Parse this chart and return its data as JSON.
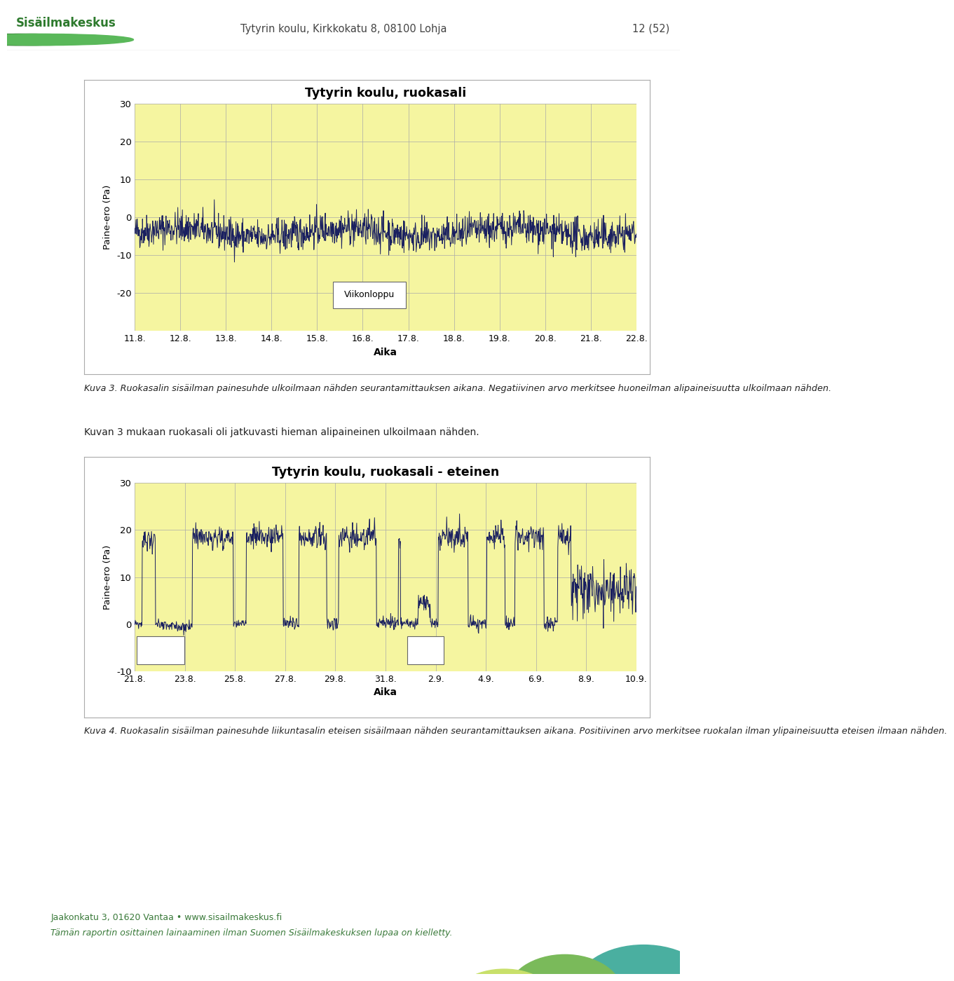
{
  "chart1": {
    "title": "Tytyrin koulu, ruokasali",
    "ylabel": "Paine-ero (Pa)",
    "xlabel": "Aika",
    "ylim": [
      -30,
      30
    ],
    "yticks": [
      -20,
      -10,
      0,
      10,
      20,
      30
    ],
    "xtick_labels": [
      "11.8.",
      "12.8.",
      "13.8.",
      "14.8.",
      "15.8.",
      "16.8.",
      "17.8.",
      "18.8.",
      "19.8.",
      "20.8.",
      "21.8.",
      "22.8."
    ],
    "n_points": 1320,
    "bg_color": "#f5f5a0",
    "line_color": "#1a2060",
    "weekend_label": "Viikonloppu"
  },
  "chart2": {
    "title": "Tytyrin koulu, ruokasali - eteinen",
    "ylabel": "Paine-ero (Pa)",
    "xlabel": "Aika",
    "ylim": [
      -10,
      30
    ],
    "yticks": [
      -10,
      0,
      10,
      20,
      30
    ],
    "xtick_labels": [
      "21.8.",
      "23.8.",
      "25.8.",
      "27.8.",
      "29.8.",
      "31.8.",
      "2.9.",
      "4.9.",
      "6.9.",
      "8.9.",
      "10.9."
    ],
    "n_points": 1210,
    "bg_color": "#f5f5a0",
    "line_color": "#1a2060"
  },
  "page_header": "Tytyrin koulu, Kirkkokatu 8, 08100 Lohja",
  "page_number": "12 (52)",
  "fig_bg": "#ffffff",
  "caption1": "Kuva 3. Ruokasalin sisäilman painesuhde ulkoilmaan nähden seurantamittauksen aikana. Negatiivinen arvo merkitsee huoneilman alipaineisuutta ulkoilmaan nähden.",
  "caption2": "Kuvan 3 mukaan ruokasali oli jatkuvasti hieman alipaineinen ulkoilmaan nähden.",
  "caption4": "Kuva 4. Ruokasalin sisäilman painesuhde liikuntasalin eteisen sisäilmaan nähden seurantamittauksen aikana. Positiivinen arvo merkitsee ruokalan ilman ylipaineisuutta eteisen ilmaan nähden.",
  "footer_text1": "Jaakonkatu 3, 01620 Vantaa • www.sisailmakeskus.fi",
  "footer_text2": "Tämän raportin osittainen lainaaminen ilman Suomen Sisäilmakeskuksen lupaa on kielletty.",
  "logo_text": "Sisäilmakeskus",
  "logo_color": "#2d7a2d",
  "header_color": "#444444"
}
